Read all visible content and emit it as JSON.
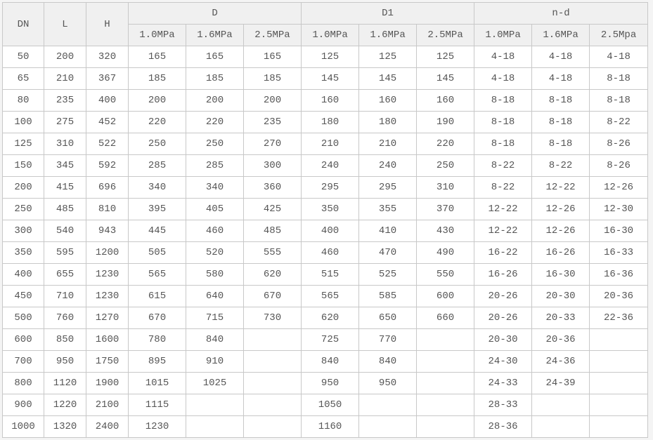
{
  "headers": {
    "dn": "DN",
    "l": "L",
    "h": "H",
    "d": "D",
    "d1": "D1",
    "nd": "n-d",
    "d_sub": [
      "1.0MPa",
      "1.6MPa",
      "2.5MPa"
    ],
    "d1_sub": [
      "1.0MPa",
      "1.6MPa",
      "2.5MPa"
    ],
    "nd_sub": [
      "1.0MPa",
      "1.6MPa",
      "2.5Mpa"
    ]
  },
  "rows": [
    [
      "50",
      "200",
      "320",
      "165",
      "165",
      "165",
      "125",
      "125",
      "125",
      "4-18",
      "4-18",
      "4-18"
    ],
    [
      "65",
      "210",
      "367",
      "185",
      "185",
      "185",
      "145",
      "145",
      "145",
      "4-18",
      "4-18",
      "8-18"
    ],
    [
      "80",
      "235",
      "400",
      "200",
      "200",
      "200",
      "160",
      "160",
      "160",
      "8-18",
      "8-18",
      "8-18"
    ],
    [
      "100",
      "275",
      "452",
      "220",
      "220",
      "235",
      "180",
      "180",
      "190",
      "8-18",
      "8-18",
      "8-22"
    ],
    [
      "125",
      "310",
      "522",
      "250",
      "250",
      "270",
      "210",
      "210",
      "220",
      "8-18",
      "8-18",
      "8-26"
    ],
    [
      "150",
      "345",
      "592",
      "285",
      "285",
      "300",
      "240",
      "240",
      "250",
      "8-22",
      "8-22",
      "8-26"
    ],
    [
      "200",
      "415",
      "696",
      "340",
      "340",
      "360",
      "295",
      "295",
      "310",
      "8-22",
      "12-22",
      "12-26"
    ],
    [
      "250",
      "485",
      "810",
      "395",
      "405",
      "425",
      "350",
      "355",
      "370",
      "12-22",
      "12-26",
      "12-30"
    ],
    [
      "300",
      "540",
      "943",
      "445",
      "460",
      "485",
      "400",
      "410",
      "430",
      "12-22",
      "12-26",
      "16-30"
    ],
    [
      "350",
      "595",
      "1200",
      "505",
      "520",
      "555",
      "460",
      "470",
      "490",
      "16-22",
      "16-26",
      "16-33"
    ],
    [
      "400",
      "655",
      "1230",
      "565",
      "580",
      "620",
      "515",
      "525",
      "550",
      "16-26",
      "16-30",
      "16-36"
    ],
    [
      "450",
      "710",
      "1230",
      "615",
      "640",
      "670",
      "565",
      "585",
      "600",
      "20-26",
      "20-30",
      "20-36"
    ],
    [
      "500",
      "760",
      "1270",
      "670",
      "715",
      "730",
      "620",
      "650",
      "660",
      "20-26",
      "20-33",
      "22-36"
    ],
    [
      "600",
      "850",
      "1600",
      "780",
      "840",
      "",
      "725",
      "770",
      "",
      "20-30",
      "20-36",
      ""
    ],
    [
      "700",
      "950",
      "1750",
      "895",
      "910",
      "",
      "840",
      "840",
      "",
      "24-30",
      "24-36",
      ""
    ],
    [
      "800",
      "1120",
      "1900",
      "1015",
      "1025",
      "",
      "950",
      "950",
      "",
      "24-33",
      "24-39",
      ""
    ],
    [
      "900",
      "1220",
      "2100",
      "1115",
      "",
      "",
      "1050",
      "",
      "",
      "28-33",
      "",
      ""
    ],
    [
      "1000",
      "1320",
      "2400",
      "1230",
      "",
      "",
      "1160",
      "",
      "",
      "28-36",
      "",
      ""
    ]
  ]
}
